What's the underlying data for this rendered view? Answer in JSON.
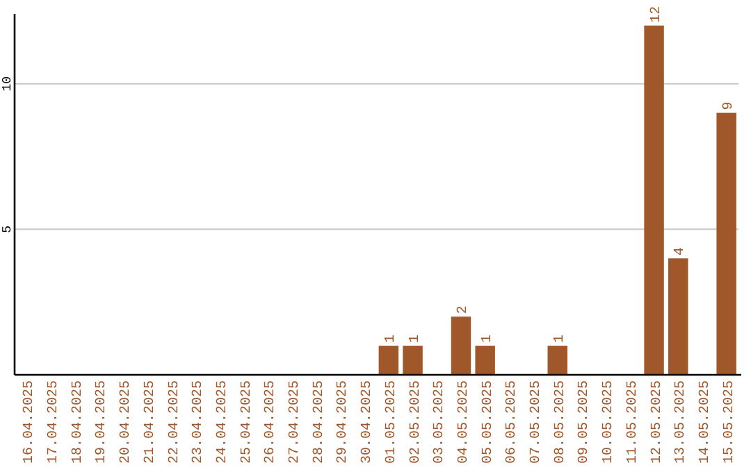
{
  "chart_data": {
    "type": "bar",
    "categories": [
      "16.04.2025",
      "17.04.2025",
      "18.04.2025",
      "19.04.2025",
      "20.04.2025",
      "21.04.2025",
      "22.04.2025",
      "23.04.2025",
      "24.04.2025",
      "25.04.2025",
      "26.04.2025",
      "27.04.2025",
      "28.04.2025",
      "29.04.2025",
      "30.04.2025",
      "01.05.2025",
      "02.05.2025",
      "03.05.2025",
      "04.05.2025",
      "05.05.2025",
      "06.05.2025",
      "07.05.2025",
      "08.05.2025",
      "09.05.2025",
      "10.05.2025",
      "11.05.2025",
      "12.05.2025",
      "13.05.2025",
      "14.05.2025",
      "15.05.2025"
    ],
    "values": [
      0,
      0,
      0,
      0,
      0,
      0,
      0,
      0,
      0,
      0,
      0,
      0,
      0,
      0,
      0,
      1,
      1,
      0,
      2,
      1,
      0,
      0,
      1,
      0,
      0,
      0,
      12,
      4,
      0,
      9
    ],
    "value_labels": [
      null,
      null,
      null,
      null,
      null,
      null,
      null,
      null,
      null,
      null,
      null,
      null,
      null,
      null,
      null,
      "1",
      "1",
      null,
      "2",
      "1",
      null,
      null,
      "1",
      null,
      null,
      null,
      "12",
      "4",
      null,
      "9"
    ],
    "color": "#a0572a",
    "ylim": [
      0,
      12.4
    ],
    "yticks": [
      5,
      10
    ],
    "grid": "y"
  }
}
